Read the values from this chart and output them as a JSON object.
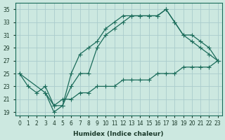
{
  "xlabel": "Humidex (Indice chaleur)",
  "bg_color": "#cce8e0",
  "grid_color": "#aacccc",
  "line_color": "#1a6b5a",
  "xlim": [
    -0.5,
    23.5
  ],
  "ylim": [
    18.5,
    36.0
  ],
  "xticks": [
    0,
    1,
    2,
    3,
    4,
    5,
    6,
    7,
    8,
    9,
    10,
    11,
    12,
    13,
    14,
    15,
    16,
    17,
    18,
    19,
    20,
    21,
    22,
    23
  ],
  "yticks": [
    19,
    21,
    23,
    25,
    27,
    29,
    31,
    33,
    35
  ],
  "line1_x": [
    0,
    1,
    2,
    3,
    4,
    5,
    6,
    7,
    8,
    9,
    10,
    11,
    12,
    13,
    14,
    15,
    16,
    17,
    18,
    19,
    20,
    21,
    22,
    23
  ],
  "line1_y": [
    25,
    23,
    22,
    23,
    20,
    20,
    25,
    28,
    29,
    30,
    32,
    33,
    34,
    34,
    34,
    34,
    34,
    35,
    33,
    31,
    30,
    29,
    28,
    27
  ],
  "line2_x": [
    3,
    4,
    5,
    6,
    7,
    8,
    9,
    10,
    11,
    12,
    13,
    14,
    15,
    16,
    17,
    18,
    19,
    20,
    21,
    22,
    23
  ],
  "line2_y": [
    22,
    19,
    20,
    23,
    25,
    25,
    29,
    31,
    32,
    33,
    34,
    34,
    34,
    34,
    35,
    33,
    31,
    31,
    30,
    29,
    27
  ],
  "line3_x": [
    0,
    3,
    4,
    5,
    6,
    7,
    8,
    9,
    10,
    11,
    12,
    13,
    14,
    15,
    16,
    17,
    18,
    19,
    20,
    21,
    22,
    23
  ],
  "line3_y": [
    25,
    22,
    20,
    21,
    21,
    22,
    22,
    23,
    23,
    23,
    24,
    24,
    24,
    24,
    25,
    25,
    25,
    26,
    26,
    26,
    26,
    27
  ]
}
